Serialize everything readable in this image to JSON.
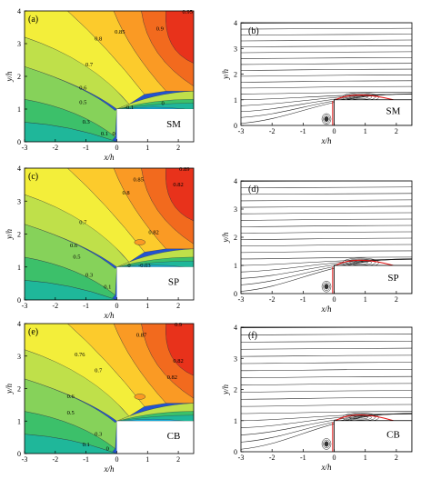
{
  "panels": [
    {
      "id": "a",
      "tag": "(a)",
      "model": "SM",
      "kind": "contour",
      "contour_labels": [
        "0.95",
        "0.9",
        "0.85",
        "0.8",
        "0.7",
        "0.6",
        "0.5",
        "0.3",
        "0.1",
        "0",
        "0",
        "-0.1"
      ]
    },
    {
      "id": "b",
      "tag": "(b)",
      "model": "SM",
      "kind": "streamline"
    },
    {
      "id": "c",
      "tag": "(c)",
      "model": "SP",
      "kind": "contour",
      "contour_labels": [
        "0.89",
        "0.85",
        "0.82",
        "0.8",
        "0.7",
        "0.82",
        "0.6",
        "0.5",
        "0.3",
        "0.1",
        "0",
        "-0.03"
      ]
    },
    {
      "id": "d",
      "tag": "(d)",
      "model": "SP",
      "kind": "streamline"
    },
    {
      "id": "e",
      "tag": "(e)",
      "model": "CB",
      "kind": "contour",
      "contour_labels": [
        "0.9",
        "0.87",
        "0.82",
        "0.76",
        "0.7",
        "0.82",
        "0.6",
        "0.5",
        "0.3",
        "0.1",
        "0"
      ]
    },
    {
      "id": "f",
      "tag": "(f)",
      "model": "CB",
      "kind": "streamline"
    }
  ],
  "axes": {
    "xlabel": "x/h",
    "ylabel": "y/h",
    "xticks": [
      "-3",
      "-2",
      "-1",
      "0",
      "1",
      "2"
    ],
    "yticks": [
      "0",
      "1",
      "2",
      "3",
      "4"
    ],
    "xlim": [
      -3,
      2.5
    ],
    "ylim": [
      0,
      4
    ]
  },
  "colors": {
    "red": "#e8321b",
    "orange_red": "#f26a1e",
    "orange": "#fa9a24",
    "yellow_orange": "#fccb2c",
    "yellow": "#f3ee3a",
    "yellow_green": "#bfe04a",
    "light_green": "#86d25a",
    "green": "#3cc06a",
    "teal": "#1fb79a",
    "cyan": "#18a9d6",
    "blue": "#2353d0",
    "separation_line": "#e01010"
  }
}
